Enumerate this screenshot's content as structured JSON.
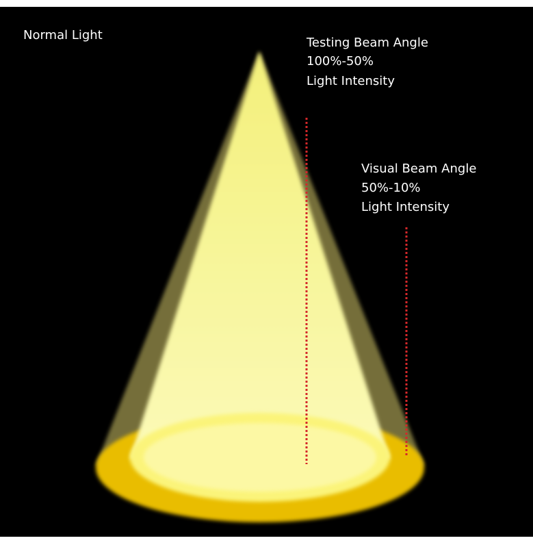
{
  "title": "Normal Light",
  "labels": [
    {
      "lines": [
        "Testing Beam Angle",
        "100%-50%",
        "Light Intensity"
      ]
    },
    {
      "lines": [
        "Visual Beam Angle",
        "50%-10%",
        "Light Intensity"
      ]
    }
  ]
}
